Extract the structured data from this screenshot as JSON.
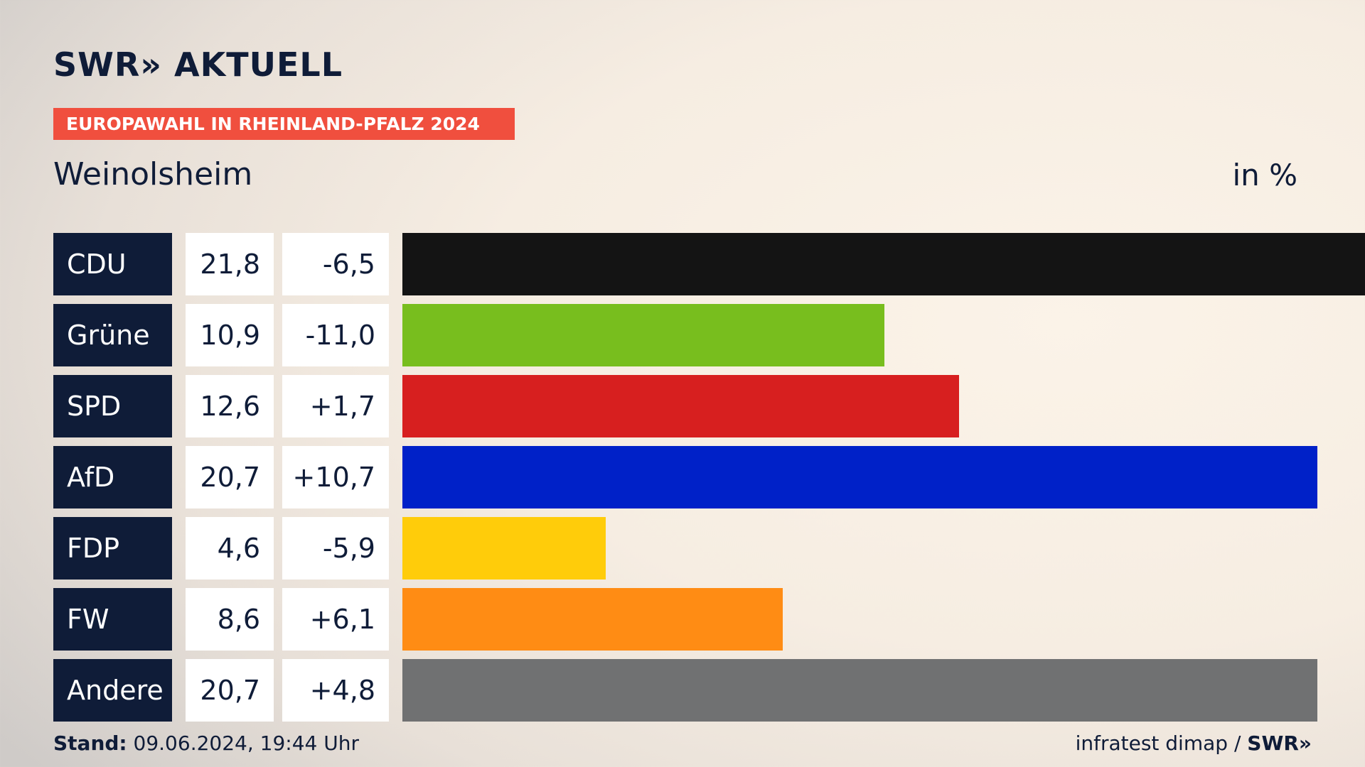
{
  "header": {
    "logo": "SWR» AKTUELL",
    "banner": "EUROPAWAHL IN RHEINLAND-PFALZ 2024",
    "location": "Weinolsheim",
    "unit": "in %"
  },
  "footer": {
    "stand_label": "Stand:",
    "stand_value": "09.06.2024, 19:44 Uhr",
    "source": "infratest dimap /",
    "brand": "SWR»"
  },
  "chart_data": {
    "type": "bar",
    "orientation": "horizontal",
    "categories": [
      "CDU",
      "Grüne",
      "SPD",
      "AfD",
      "FDP",
      "FW",
      "Andere"
    ],
    "values": [
      21.8,
      10.9,
      12.6,
      20.7,
      4.6,
      8.6,
      20.7
    ],
    "value_labels": [
      "21,8",
      "10,9",
      "12,6",
      "20,7",
      "4,6",
      "8,6",
      "20,7"
    ],
    "diff_values": [
      -6.5,
      -11.0,
      1.7,
      10.7,
      -5.9,
      6.1,
      4.8
    ],
    "diff_labels": [
      "-6,5",
      "-11,0",
      "+1,7",
      "+10,7",
      "-5,9",
      "+6,1",
      "+4,8"
    ],
    "colors": [
      "#141414",
      "#78be1e",
      "#d71f1f",
      "#0021c8",
      "#ffcc0a",
      "#ff8c14",
      "#707172"
    ],
    "title": "Weinolsheim",
    "unit": "in %",
    "xlim": [
      0,
      21.8
    ]
  },
  "colors": {
    "navy": "#0f1c38",
    "banner": "#f04f3e"
  }
}
